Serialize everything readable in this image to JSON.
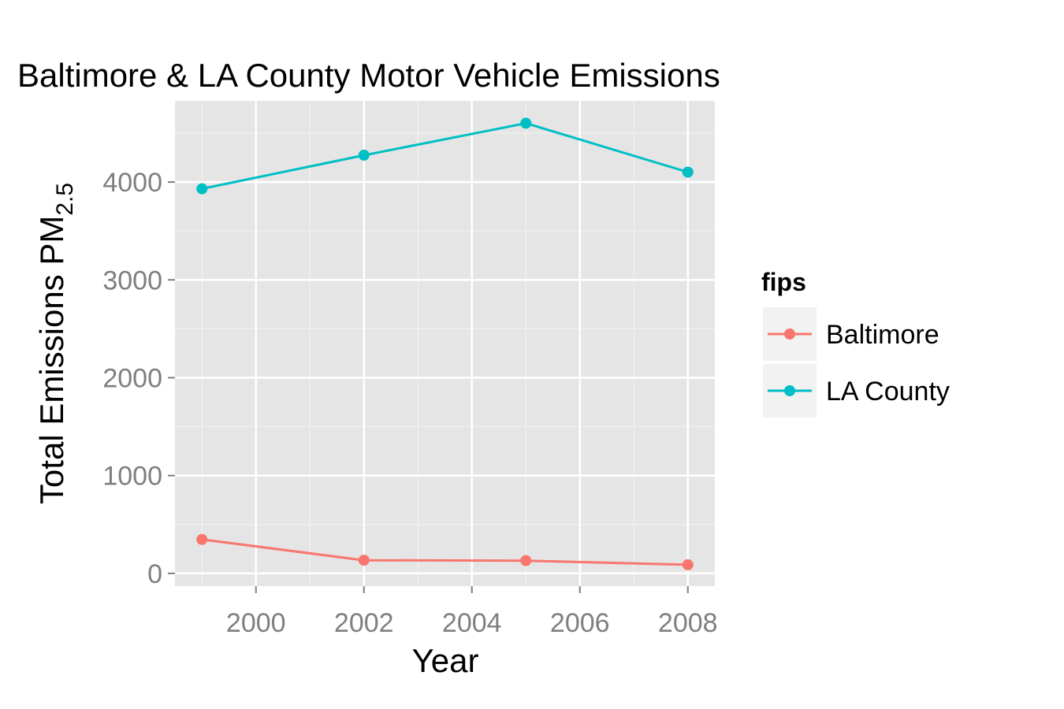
{
  "chart_data": {
    "type": "line",
    "title": "Baltimore & LA County Motor Vehicle Emissions",
    "xlabel": "Year",
    "ylabel_main": "Total Emissions PM",
    "ylabel_sub": "2.5",
    "x": [
      1999,
      2002,
      2005,
      2008
    ],
    "xlim": [
      1998.5,
      2008.5
    ],
    "ylim": [
      -130,
      4830
    ],
    "xticks": [
      2000,
      2002,
      2004,
      2006,
      2008
    ],
    "xtick_labels": [
      "2000",
      "2002",
      "2004",
      "2006",
      "2008"
    ],
    "yticks": [
      0,
      1000,
      2000,
      3000,
      4000
    ],
    "ytick_labels": [
      "0",
      "1000",
      "2000",
      "3000",
      "4000"
    ],
    "grid": true,
    "legend": {
      "title": "fips",
      "position": "right"
    },
    "series": [
      {
        "name": "Baltimore",
        "color": "#F8766D",
        "values": [
          346.8,
          134.3,
          130.4,
          88.3
        ]
      },
      {
        "name": "LA County",
        "color": "#00BFC4",
        "values": [
          3931.1,
          4274.0,
          4601.4,
          4101.3
        ]
      }
    ]
  }
}
